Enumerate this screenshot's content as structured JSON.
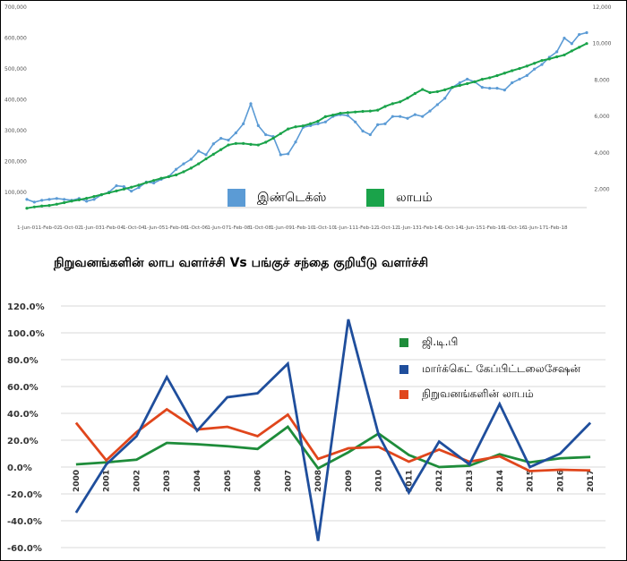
{
  "caption": "நிறுவனங்களின் லாப வளர்ச்சி Vs பங்குச் சந்தை குறியீடு வளர்ச்சி",
  "chart_data": [
    {
      "type": "line",
      "title": "",
      "x_tick_labels": [
        "1-Jun-01",
        "1-Feb-02",
        "1-Oct-02",
        "1-Jun-03",
        "1-Feb-04",
        "1-Oct-04",
        "1-Jun-05",
        "1-Feb-06",
        "1-Oct-06",
        "1-Jun-07",
        "1-Feb-08",
        "1-Oct-08",
        "1-Jun-09",
        "1-Feb-10",
        "1-Oct-10",
        "1-Jun-11",
        "1-Feb-12",
        "1-Oct-12",
        "1-Jun-13",
        "1-Feb-14",
        "1-Oct-14",
        "1-Jun-15",
        "1-Feb-16",
        "1-Oct-16",
        "1-Jun-17",
        "1-Feb-18"
      ],
      "y_left_ticks": [
        "100,000",
        "200,000",
        "300,000",
        "400,000",
        "500,000",
        "600,000",
        "700,000"
      ],
      "y_right_ticks": [
        "2,000",
        "4,000",
        "6,000",
        "8,000",
        "10,000",
        "12,000"
      ],
      "ylim_left": [
        50000,
        700000
      ],
      "ylim_right": [
        1000,
        12000
      ],
      "grid": false,
      "legend_position": "bottom-center",
      "series": [
        {
          "name": "இண்டெக்ஸ்",
          "axis": "right",
          "color": "#5b9bd5",
          "values": [
            1450,
            1300,
            1400,
            1450,
            1500,
            1450,
            1400,
            1500,
            1350,
            1450,
            1700,
            1850,
            2200,
            2150,
            1900,
            2100,
            2400,
            2350,
            2550,
            2700,
            3100,
            3400,
            3650,
            4100,
            3900,
            4500,
            4800,
            4700,
            5100,
            5600,
            6700,
            5500,
            5000,
            4900,
            3900,
            3950,
            4600,
            5400,
            5500,
            5600,
            5700,
            6000,
            6100,
            6050,
            5700,
            5200,
            5000,
            5550,
            5600,
            6000,
            6000,
            5900,
            6100,
            6000,
            6300,
            6650,
            7000,
            7600,
            7850,
            8050,
            7900,
            7600,
            7550,
            7550,
            7450,
            7850,
            8050,
            8250,
            8600,
            8850,
            9250,
            9550,
            10300,
            10000,
            10500,
            10600
          ],
          "x_ticks_mapping": "one value per 4 months, starting 1-Jun-01"
        },
        {
          "name": "லாபம்",
          "axis": "left",
          "color": "#1aa34a",
          "values": [
            48000,
            52000,
            55000,
            57000,
            61000,
            66000,
            71000,
            75000,
            80000,
            86000,
            92000,
            98000,
            104000,
            110000,
            116000,
            123000,
            131000,
            138000,
            145000,
            150000,
            156000,
            166000,
            178000,
            192000,
            208000,
            223000,
            238000,
            253000,
            258000,
            258000,
            255000,
            253000,
            262000,
            275000,
            290000,
            305000,
            312000,
            315000,
            322000,
            330000,
            345000,
            350000,
            356000,
            358000,
            360000,
            362000,
            363000,
            366000,
            378000,
            387000,
            393000,
            405000,
            420000,
            433000,
            423000,
            426000,
            432000,
            440000,
            446000,
            452000,
            458000,
            466000,
            471000,
            478000,
            486000,
            494000,
            501000,
            509000,
            518000,
            527000,
            532000,
            539000,
            545000,
            558000,
            570000,
            582000
          ]
        }
      ]
    },
    {
      "type": "line",
      "title": "",
      "categories": [
        "2000",
        "2001",
        "2002",
        "2003",
        "2004",
        "2005",
        "2006",
        "2007",
        "2008",
        "2009",
        "2010",
        "2011",
        "2012",
        "2013",
        "2014",
        "2015",
        "2016",
        "2017"
      ],
      "y_ticks": [
        "120.0%",
        "100.0%",
        "80.0%",
        "60.0%",
        "40.0%",
        "20.0%",
        "0.0%",
        "-20.0%",
        "-40.0%",
        "-60.0%"
      ],
      "ylim": [
        -60,
        120
      ],
      "grid": true,
      "legend_position": "top-right",
      "series": [
        {
          "name": "ஜி.டி.பி",
          "color": "#1e8c3a",
          "values": [
            2.0,
            3.5,
            5.5,
            18.0,
            17.0,
            15.5,
            13.5,
            30.0,
            -1.0,
            11.0,
            25.0,
            9.0,
            0.0,
            1.0,
            9.5,
            3.5,
            6.5,
            7.5
          ]
        },
        {
          "name": "மார்க்கெட் கேப்பிட்டலைசேஷன்",
          "color": "#1f4e9c",
          "values": [
            -34.0,
            2.0,
            23.0,
            67.0,
            27.0,
            52.0,
            55.0,
            77.0,
            -55.0,
            110.0,
            24.0,
            -19.0,
            19.0,
            2.0,
            47.0,
            0.0,
            10.0,
            33.0
          ]
        },
        {
          "name": "நிறுவனங்களின் லாபம்",
          "color": "#e0461c",
          "values": [
            33.0,
            5.0,
            26.0,
            43.0,
            28.0,
            30.0,
            23.0,
            39.0,
            6.0,
            14.0,
            15.0,
            4.0,
            13.0,
            4.0,
            8.0,
            -3.0,
            -2.0,
            -2.5
          ]
        }
      ]
    }
  ]
}
